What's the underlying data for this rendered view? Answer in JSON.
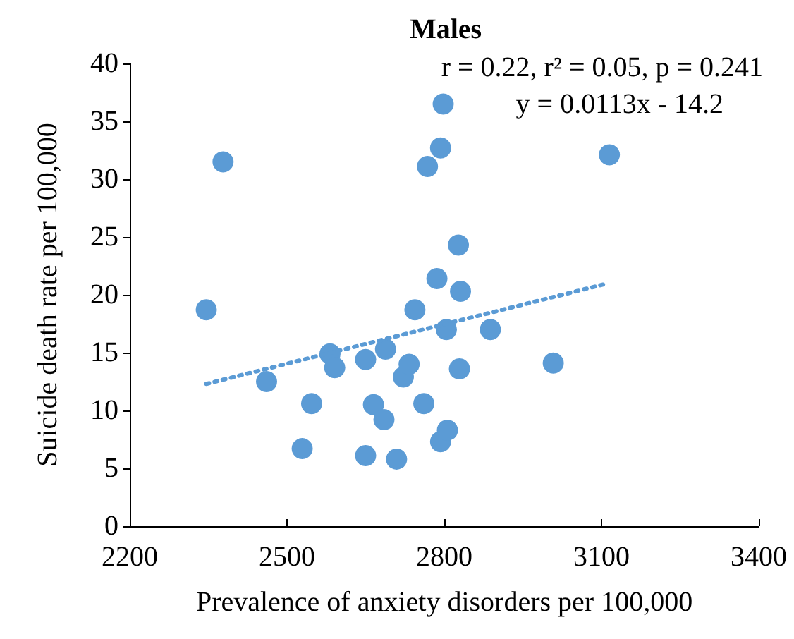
{
  "chart_data": {
    "type": "scatter",
    "title": "Males",
    "xlabel": "Prevalence of anxiety disorders per 100,000",
    "ylabel": "Suicide death rate per 100,000",
    "annotations": [
      "r = 0.22, r² = 0.05, p = 0.241",
      "y = 0.0113x - 14.2"
    ],
    "series": [
      {
        "color": "#5b9bd5",
        "marker": "circle",
        "x": [
          2346,
          2378,
          2461,
          2529,
          2547,
          2582,
          2591,
          2650,
          2650,
          2665,
          2685,
          2688,
          2709,
          2722,
          2733,
          2744,
          2761,
          2768,
          2786,
          2793,
          2793,
          2798,
          2806,
          2804,
          2827,
          2831,
          2829,
          2888,
          3008,
          3115
        ],
        "values": [
          18.7,
          31.5,
          12.5,
          6.7,
          10.6,
          14.9,
          13.7,
          14.4,
          6.1,
          10.5,
          9.2,
          15.3,
          5.8,
          12.9,
          14.0,
          18.7,
          10.6,
          31.1,
          21.4,
          32.7,
          7.3,
          36.5,
          8.3,
          17.0,
          24.3,
          20.3,
          13.6,
          17.0,
          14.1,
          32.1
        ]
      },
      {
        "type": "line",
        "color": "#5b9bd5",
        "marker": "none",
        "line_style": "dotted",
        "x": [
          2346,
          3104
        ],
        "values": [
          12.3,
          20.9
        ]
      }
    ],
    "xlim": [
      2200,
      3400
    ],
    "xticks": [
      2200,
      2500,
      2800,
      3100,
      3400
    ],
    "ylim": [
      0,
      40
    ],
    "yticks": [
      0,
      5,
      10,
      15,
      20,
      25,
      30,
      35,
      40
    ],
    "grid": false
  }
}
